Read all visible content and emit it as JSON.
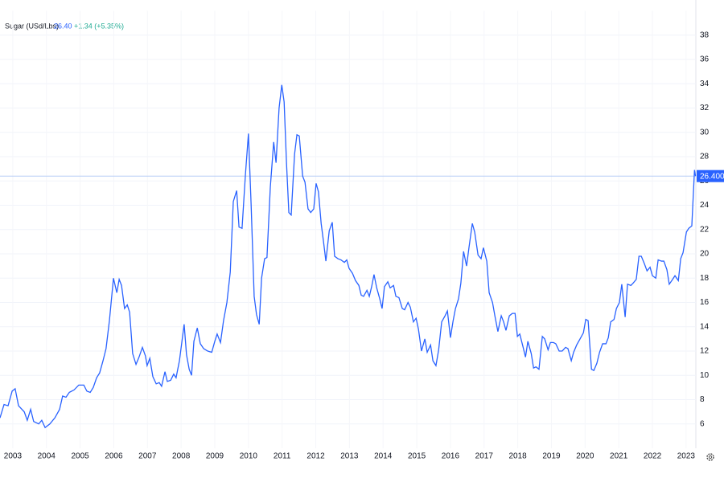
{
  "chart_data": {
    "type": "line",
    "title": "Sugar (USd/Lbs)",
    "last_price": "26.40",
    "change": "+1.34 (+5.35%)",
    "price_line": {
      "value": 26.4,
      "label": "26.400"
    },
    "xlim": [
      2002.62,
      2023.29
    ],
    "ylim": [
      4,
      40
    ],
    "xticks": [
      2003,
      2004,
      2005,
      2006,
      2007,
      2008,
      2009,
      2010,
      2011,
      2012,
      2013,
      2014,
      2015,
      2016,
      2017,
      2018,
      2019,
      2020,
      2021,
      2022,
      2023
    ],
    "yticks": [
      6,
      8,
      10,
      12,
      14,
      16,
      18,
      20,
      22,
      24,
      26,
      28,
      30,
      32,
      34,
      36,
      38
    ],
    "grid": true,
    "series": [
      {
        "name": "Sugar",
        "color": "#2962ff",
        "x": [
          2002.62,
          2002.74,
          2002.86,
          2002.98,
          2003.07,
          2003.17,
          2003.34,
          2003.43,
          2003.53,
          2003.62,
          2003.77,
          2003.86,
          2003.96,
          2004.1,
          2004.25,
          2004.39,
          2004.48,
          2004.58,
          2004.68,
          2004.82,
          2004.96,
          2005.11,
          2005.2,
          2005.3,
          2005.39,
          2005.49,
          2005.58,
          2005.68,
          2005.77,
          2005.87,
          2005.99,
          2006.09,
          2006.16,
          2006.23,
          2006.32,
          2006.4,
          2006.47,
          2006.56,
          2006.66,
          2006.75,
          2006.85,
          2006.94,
          2006.99,
          2007.07,
          2007.16,
          2007.26,
          2007.35,
          2007.42,
          2007.52,
          2007.59,
          2007.69,
          2007.78,
          2007.85,
          2007.95,
          2008.02,
          2008.09,
          2008.16,
          2008.24,
          2008.31,
          2008.38,
          2008.48,
          2008.57,
          2008.67,
          2008.79,
          2008.91,
          2009.0,
          2009.07,
          2009.17,
          2009.26,
          2009.36,
          2009.46,
          2009.55,
          2009.65,
          2009.72,
          2009.81,
          2009.91,
          2010.0,
          2010.08,
          2010.17,
          2010.24,
          2010.32,
          2010.39,
          2010.48,
          2010.55,
          2010.65,
          2010.75,
          2010.82,
          2010.91,
          2010.99,
          2011.06,
          2011.13,
          2011.2,
          2011.27,
          2011.37,
          2011.44,
          2011.51,
          2011.61,
          2011.68,
          2011.77,
          2011.85,
          2011.94,
          2012.01,
          2012.08,
          2012.16,
          2012.23,
          2012.3,
          2012.4,
          2012.49,
          2012.56,
          2012.66,
          2012.75,
          2012.85,
          2012.92,
          2012.99,
          2013.09,
          2013.18,
          2013.28,
          2013.35,
          2013.42,
          2013.52,
          2013.59,
          2013.66,
          2013.73,
          2013.81,
          2013.9,
          2013.97,
          2014.04,
          2014.14,
          2014.21,
          2014.31,
          2014.38,
          2014.47,
          2014.57,
          2014.64,
          2014.74,
          2014.81,
          2014.9,
          2014.98,
          2015.05,
          2015.14,
          2015.24,
          2015.31,
          2015.41,
          2015.48,
          2015.57,
          2015.65,
          2015.74,
          2015.84,
          2015.91,
          2016.0,
          2016.08,
          2016.15,
          2016.24,
          2016.31,
          2016.39,
          2016.48,
          2016.55,
          2016.65,
          2016.72,
          2016.82,
          2016.91,
          2016.98,
          2017.08,
          2017.15,
          2017.25,
          2017.32,
          2017.41,
          2017.51,
          2017.58,
          2017.65,
          2017.75,
          2017.84,
          2017.92,
          2017.99,
          2018.06,
          2018.16,
          2018.23,
          2018.3,
          2018.4,
          2018.47,
          2018.54,
          2018.63,
          2018.73,
          2018.8,
          2018.9,
          2018.97,
          2019.06,
          2019.13,
          2019.23,
          2019.32,
          2019.42,
          2019.49,
          2019.59,
          2019.66,
          2019.75,
          2019.85,
          2019.95,
          2020.02,
          2020.09,
          2020.19,
          2020.26,
          2020.35,
          2020.43,
          2020.52,
          2020.62,
          2020.69,
          2020.76,
          2020.86,
          2020.93,
          2021.02,
          2021.09,
          2021.19,
          2021.26,
          2021.36,
          2021.43,
          2021.52,
          2021.6,
          2021.67,
          2021.76,
          2021.84,
          2021.93,
          2022.0,
          2022.1,
          2022.17,
          2022.27,
          2022.34,
          2022.43,
          2022.5,
          2022.6,
          2022.67,
          2022.77,
          2022.84,
          2022.91,
          2023.01,
          2023.08,
          2023.17,
          2023.25,
          2023.28
        ],
        "values": [
          6.5,
          7.6,
          7.5,
          8.7,
          8.9,
          7.5,
          7.0,
          6.3,
          7.2,
          6.2,
          6.0,
          6.3,
          5.7,
          6.0,
          6.5,
          7.2,
          8.3,
          8.2,
          8.6,
          8.8,
          9.2,
          9.2,
          8.7,
          8.6,
          9.0,
          9.8,
          10.2,
          11.2,
          12.2,
          14.5,
          18.0,
          16.8,
          17.9,
          17.4,
          15.5,
          15.8,
          15.2,
          11.8,
          10.9,
          11.5,
          12.3,
          11.6,
          10.8,
          11.4,
          9.9,
          9.3,
          9.4,
          9.1,
          10.3,
          9.5,
          9.6,
          10.1,
          9.8,
          11.2,
          12.7,
          14.2,
          11.7,
          10.5,
          10.0,
          12.8,
          13.9,
          12.6,
          12.2,
          12.0,
          11.9,
          12.8,
          13.4,
          12.7,
          14.5,
          16.0,
          18.5,
          24.3,
          25.2,
          22.2,
          22.1,
          26.5,
          29.9,
          24.0,
          16.5,
          15.0,
          14.2,
          18.0,
          19.6,
          19.7,
          25.5,
          29.2,
          27.5,
          32.0,
          33.9,
          32.5,
          27.5,
          23.4,
          23.2,
          28.2,
          29.8,
          29.7,
          26.4,
          25.9,
          23.7,
          23.4,
          23.7,
          25.8,
          25.1,
          22.5,
          21.0,
          19.4,
          21.9,
          22.6,
          19.8,
          19.6,
          19.5,
          19.3,
          19.5,
          18.8,
          18.4,
          17.8,
          17.4,
          16.6,
          16.5,
          17.0,
          16.5,
          17.3,
          18.3,
          17.2,
          16.3,
          15.5,
          17.3,
          17.7,
          17.2,
          17.4,
          16.5,
          16.4,
          15.5,
          15.4,
          16.0,
          15.6,
          14.4,
          14.7,
          13.8,
          12.0,
          13.0,
          11.9,
          12.5,
          11.2,
          10.8,
          12.1,
          14.4,
          14.9,
          15.3,
          13.1,
          14.5,
          15.5,
          16.3,
          17.6,
          20.2,
          19.0,
          20.5,
          22.5,
          21.8,
          19.9,
          19.6,
          20.5,
          19.4,
          16.8,
          16.0,
          14.9,
          13.6,
          14.9,
          14.4,
          13.7,
          14.9,
          15.1,
          15.1,
          13.2,
          13.4,
          12.3,
          11.5,
          12.8,
          11.8,
          10.6,
          10.7,
          10.5,
          13.2,
          13.0,
          12.1,
          12.7,
          12.7,
          12.6,
          12.0,
          12.0,
          12.3,
          12.2,
          11.2,
          11.9,
          12.5,
          13.0,
          13.5,
          14.6,
          14.5,
          10.5,
          10.4,
          11.0,
          11.9,
          12.6,
          12.6,
          13.1,
          14.4,
          14.6,
          15.5,
          16.0,
          17.5,
          14.8,
          17.5,
          17.4,
          17.6,
          17.9,
          19.8,
          19.8,
          19.2,
          18.6,
          18.9,
          18.2,
          18.0,
          19.5,
          19.4,
          19.4,
          18.7,
          17.5,
          17.9,
          18.2,
          17.8,
          19.6,
          20.1,
          21.8,
          22.1,
          22.3,
          26.9,
          26.4
        ]
      }
    ]
  }
}
